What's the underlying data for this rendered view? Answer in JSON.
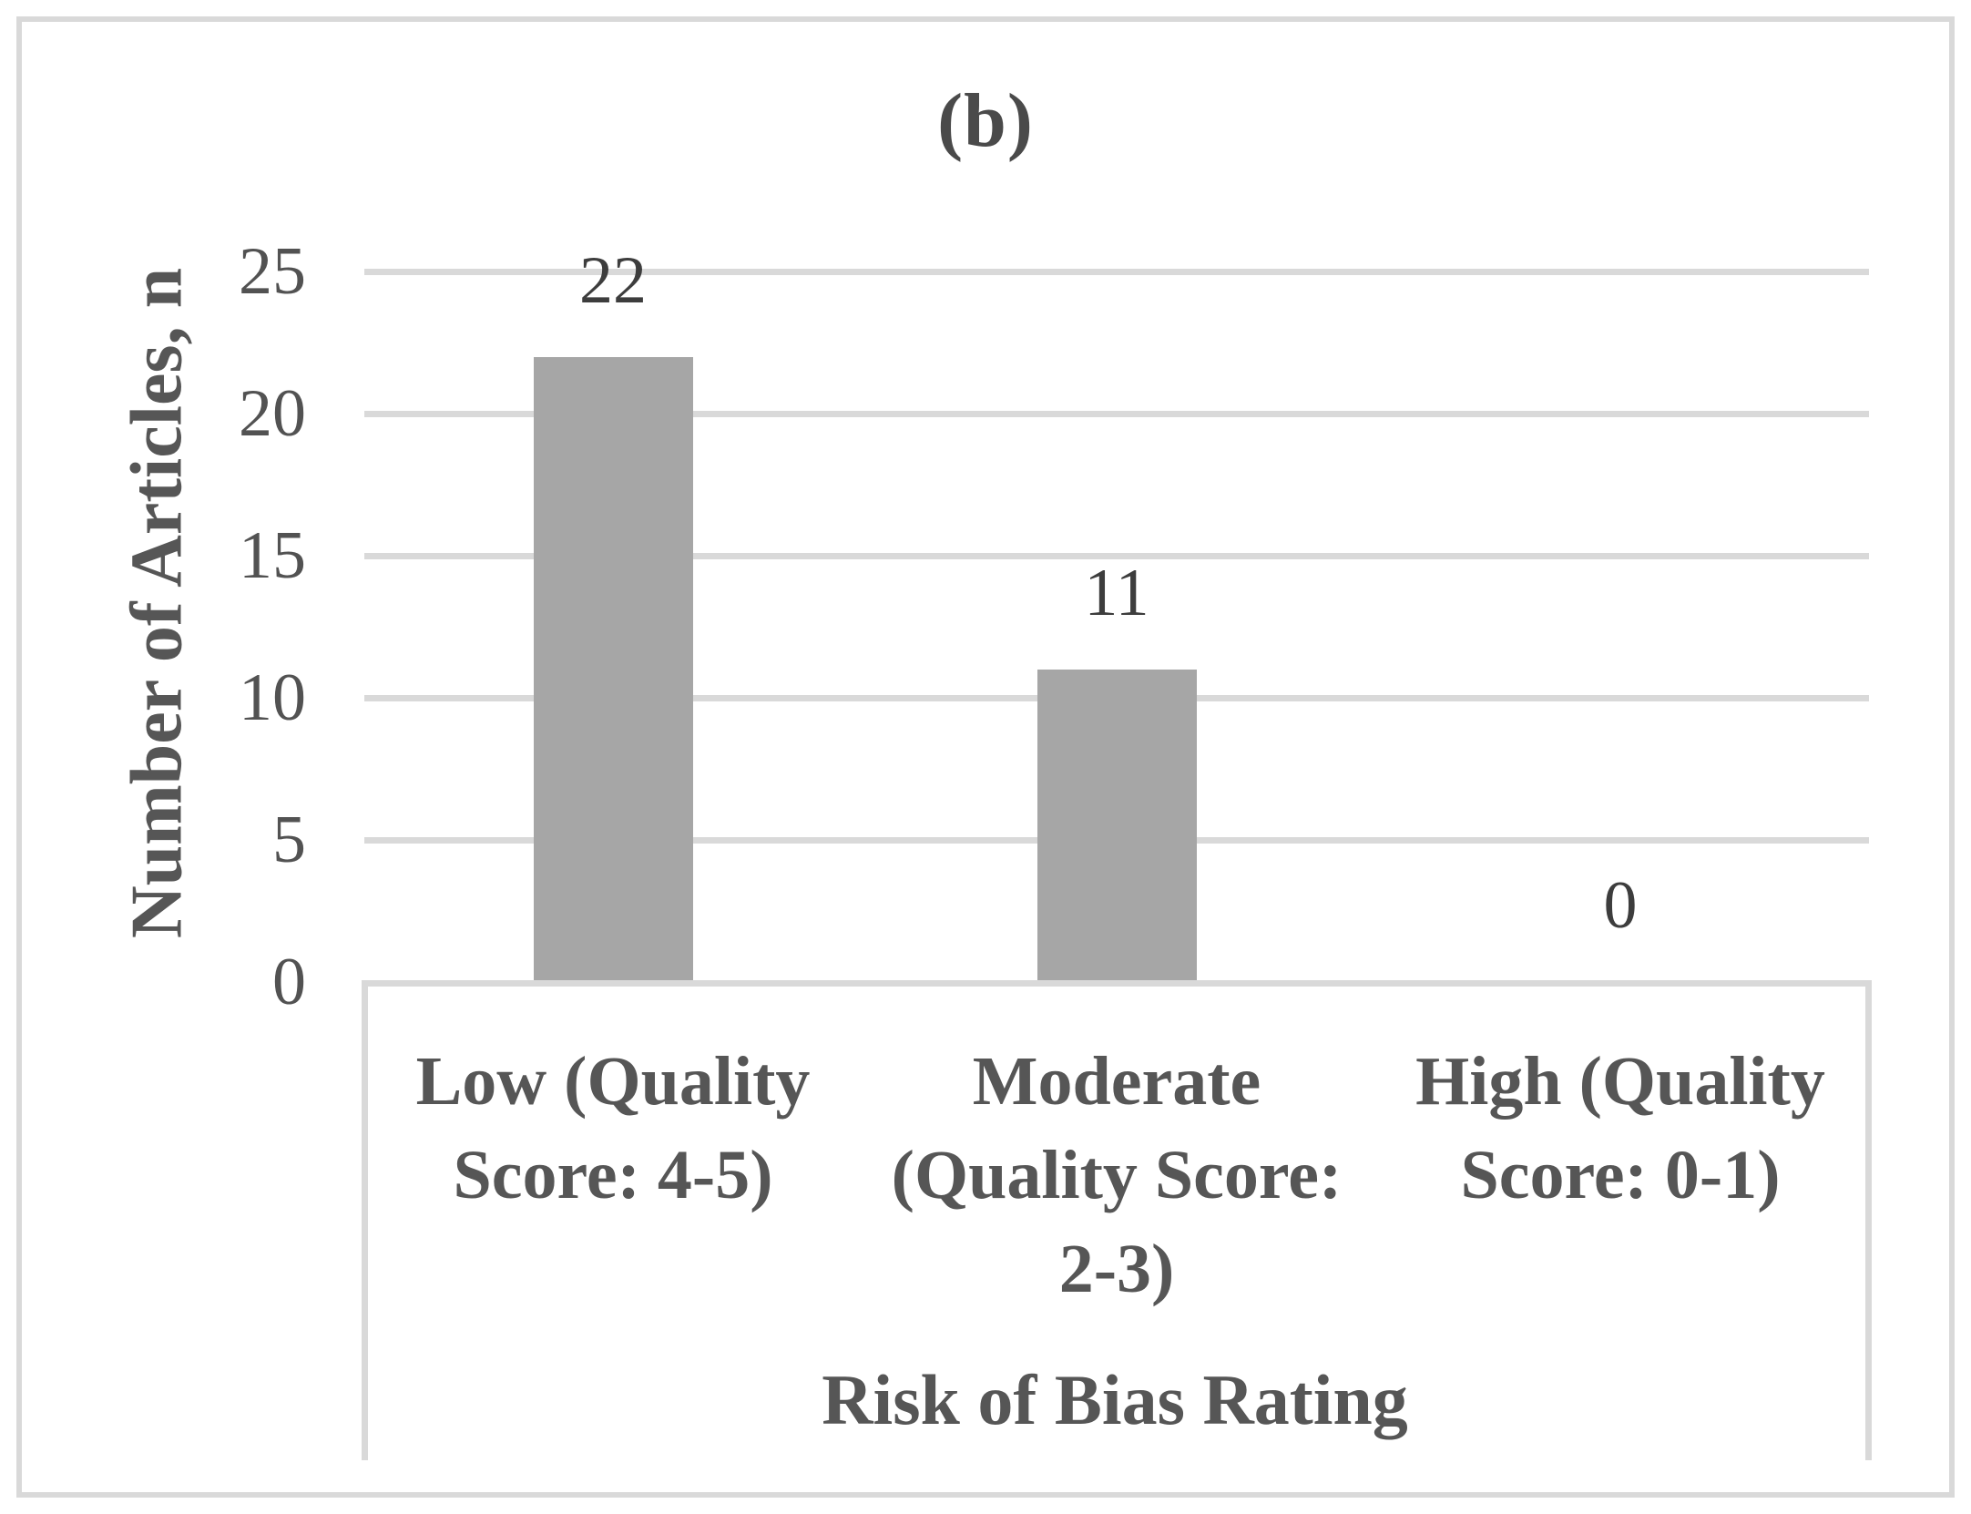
{
  "figure": {
    "panel_label": "(b)"
  },
  "chart_data": {
    "type": "bar",
    "title": "(b)",
    "categories": [
      "Low (Quality Score: 4-5)",
      "Moderate (Quality Score: 2-3)",
      "High (Quality Score: 0-1)"
    ],
    "categories_wrapped": [
      [
        "Low (Quality",
        "Score: 4-5)"
      ],
      [
        "Moderate",
        "(Quality Score:",
        "2-3)"
      ],
      [
        "High (Quality",
        "Score: 0-1)"
      ]
    ],
    "values": [
      22,
      11,
      0
    ],
    "data_labels": [
      "22",
      "11",
      "0"
    ],
    "xlabel": "Risk of Bias Rating",
    "ylabel": "Number of Articles, n",
    "ylim": [
      0,
      25
    ],
    "yticks": [
      0,
      5,
      10,
      15,
      20,
      25
    ],
    "gridline_ticks": [
      5,
      10,
      15,
      20,
      25
    ],
    "grid": true,
    "legend": "none",
    "bar_color": "#a6a6a6",
    "line_color": "#d9d9d9",
    "axis_text_color": "#525252",
    "label_text_color": "#565656",
    "value_text_color": "#3d3d3d"
  }
}
